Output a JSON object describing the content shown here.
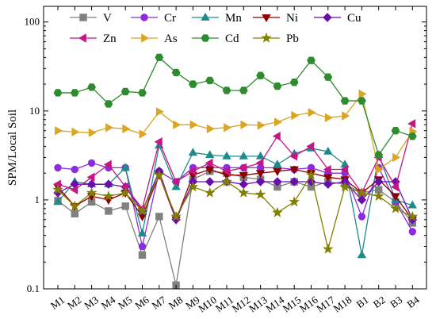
{
  "chart_data": {
    "type": "line",
    "ylabel": "SPM/Local Soil",
    "yscale": "log",
    "ylim": [
      0.1,
      150
    ],
    "grid": false,
    "legend_placement": "top",
    "y_ticks": [
      {
        "value": 0.1,
        "label": "0.1"
      },
      {
        "value": 1,
        "label": "1"
      },
      {
        "value": 10,
        "label": "10"
      },
      {
        "value": 100,
        "label": "100"
      }
    ],
    "categories": [
      "M1",
      "M2",
      "M3",
      "M4",
      "M5",
      "M6",
      "M7",
      "M8",
      "M9",
      "M10",
      "M11",
      "M12",
      "M13",
      "M14",
      "M15",
      "M16",
      "M17",
      "M18",
      "B1",
      "B2",
      "B3",
      "B4"
    ],
    "series": [
      {
        "name": "V",
        "color": "#808080",
        "marker": "square",
        "values": [
          0.98,
          0.7,
          0.95,
          0.75,
          0.85,
          0.24,
          0.65,
          0.11,
          1.7,
          2.1,
          2.0,
          1.8,
          1.7,
          1.4,
          1.6,
          1.4,
          1.6,
          1.5,
          1.2,
          1.3,
          0.95,
          0.55
        ]
      },
      {
        "name": "Cr",
        "color": "#8b2be2",
        "marker": "circle",
        "values": [
          2.3,
          2.2,
          2.6,
          2.3,
          2.3,
          0.3,
          2.1,
          1.6,
          2.3,
          2.3,
          2.3,
          2.3,
          2.3,
          2.3,
          2.2,
          2.3,
          2.0,
          2.0,
          0.65,
          2.3,
          0.95,
          0.44
        ]
      },
      {
        "name": "Mn",
        "color": "#1f8a8a",
        "marker": "triangle-up",
        "values": [
          0.95,
          1.6,
          1.5,
          1.5,
          2.3,
          0.42,
          4.1,
          1.4,
          3.4,
          3.2,
          3.1,
          3.1,
          3.1,
          2.5,
          3.3,
          3.8,
          3.5,
          2.5,
          0.24,
          3.2,
          1.0,
          0.87
        ]
      },
      {
        "name": "Ni",
        "color": "#8b0000",
        "marker": "triangle-down",
        "values": [
          1.4,
          0.85,
          1.1,
          1.0,
          1.2,
          0.65,
          1.9,
          0.6,
          1.9,
          2.2,
          1.9,
          1.9,
          2.0,
          2.1,
          2.2,
          2.0,
          1.8,
          1.7,
          1.2,
          1.7,
          1.1,
          0.6
        ]
      },
      {
        "name": "Cu",
        "color": "#6a0dad",
        "marker": "diamond",
        "values": [
          1.2,
          1.5,
          1.5,
          1.5,
          1.4,
          0.75,
          2.1,
          0.6,
          1.6,
          1.6,
          1.6,
          1.5,
          1.6,
          1.6,
          1.6,
          1.6,
          1.5,
          1.6,
          1.0,
          1.6,
          1.6,
          0.6
        ]
      },
      {
        "name": "Zn",
        "color": "#c71585",
        "marker": "triangle-left",
        "values": [
          1.5,
          1.3,
          1.8,
          2.5,
          1.4,
          0.8,
          4.5,
          1.6,
          2.1,
          2.6,
          2.1,
          2.3,
          2.6,
          5.2,
          3.1,
          4.0,
          2.2,
          2.2,
          1.2,
          3.0,
          1.4,
          7.2
        ]
      },
      {
        "name": "As",
        "color": "#daa520",
        "marker": "triangle-right",
        "values": [
          6.0,
          5.8,
          5.7,
          6.5,
          6.3,
          5.5,
          9.8,
          7.0,
          7.0,
          6.3,
          6.5,
          7.0,
          6.9,
          7.5,
          8.9,
          9.6,
          8.4,
          8.8,
          15.5,
          2.2,
          3.0,
          5.9
        ]
      },
      {
        "name": "Cd",
        "color": "#2e8b2e",
        "marker": "hexagon",
        "values": [
          16.0,
          16.0,
          18.5,
          12.0,
          16.5,
          16.0,
          40.0,
          27.0,
          20.0,
          22.0,
          17.0,
          17.0,
          25.0,
          19.0,
          21.0,
          37.0,
          24.0,
          13.0,
          13.0,
          3.2,
          6.0,
          5.2
        ]
      },
      {
        "name": "Pb",
        "color": "#808000",
        "marker": "star",
        "values": [
          1.3,
          0.85,
          1.2,
          1.1,
          1.2,
          0.75,
          1.9,
          0.65,
          1.4,
          1.2,
          1.6,
          1.2,
          1.15,
          0.72,
          0.95,
          1.9,
          0.28,
          1.4,
          1.2,
          1.1,
          0.8,
          0.65
        ]
      }
    ]
  }
}
